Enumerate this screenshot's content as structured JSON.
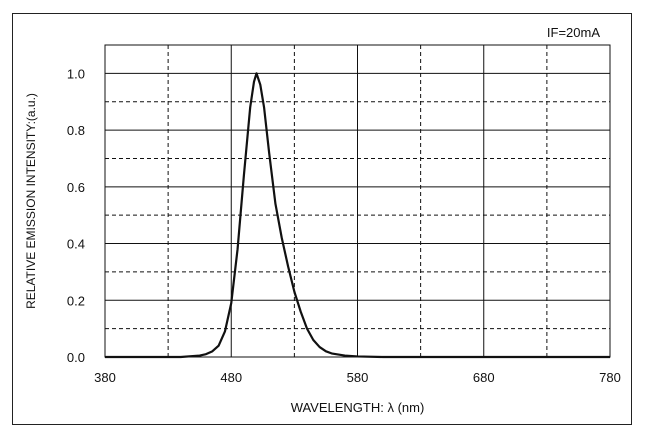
{
  "chart_data": {
    "type": "line",
    "annotation": "IF=20mA",
    "xlabel": "WAVELENGTH: λ (nm)",
    "ylabel": "RELATIVE EMISSION INTENSITY:(a.u.)",
    "xlim": [
      380,
      780
    ],
    "ylim": [
      0,
      1.1
    ],
    "x_ticks": [
      380,
      480,
      580,
      680,
      780
    ],
    "y_ticks": [
      0.0,
      0.2,
      0.4,
      0.6,
      0.8,
      1.0
    ],
    "y_tick_labels": [
      "0.0",
      "0.2",
      "0.4",
      "0.6",
      "0.8",
      "1.0"
    ],
    "grid": {
      "major": "solid",
      "minor": "dashed"
    },
    "series": [
      {
        "x": [
          380,
          440,
          455,
          460,
          465,
          470,
          475,
          480,
          485,
          490,
          495,
          498,
          500,
          503,
          506,
          510,
          515,
          520,
          525,
          530,
          535,
          540,
          545,
          550,
          555,
          560,
          570,
          580,
          600,
          620,
          780
        ],
        "y": [
          0.0,
          0.0,
          0.005,
          0.01,
          0.02,
          0.04,
          0.09,
          0.19,
          0.38,
          0.64,
          0.88,
          0.97,
          1.0,
          0.96,
          0.88,
          0.72,
          0.54,
          0.42,
          0.32,
          0.23,
          0.16,
          0.1,
          0.06,
          0.035,
          0.02,
          0.012,
          0.005,
          0.002,
          0.0,
          0.0,
          0.0
        ]
      }
    ]
  }
}
